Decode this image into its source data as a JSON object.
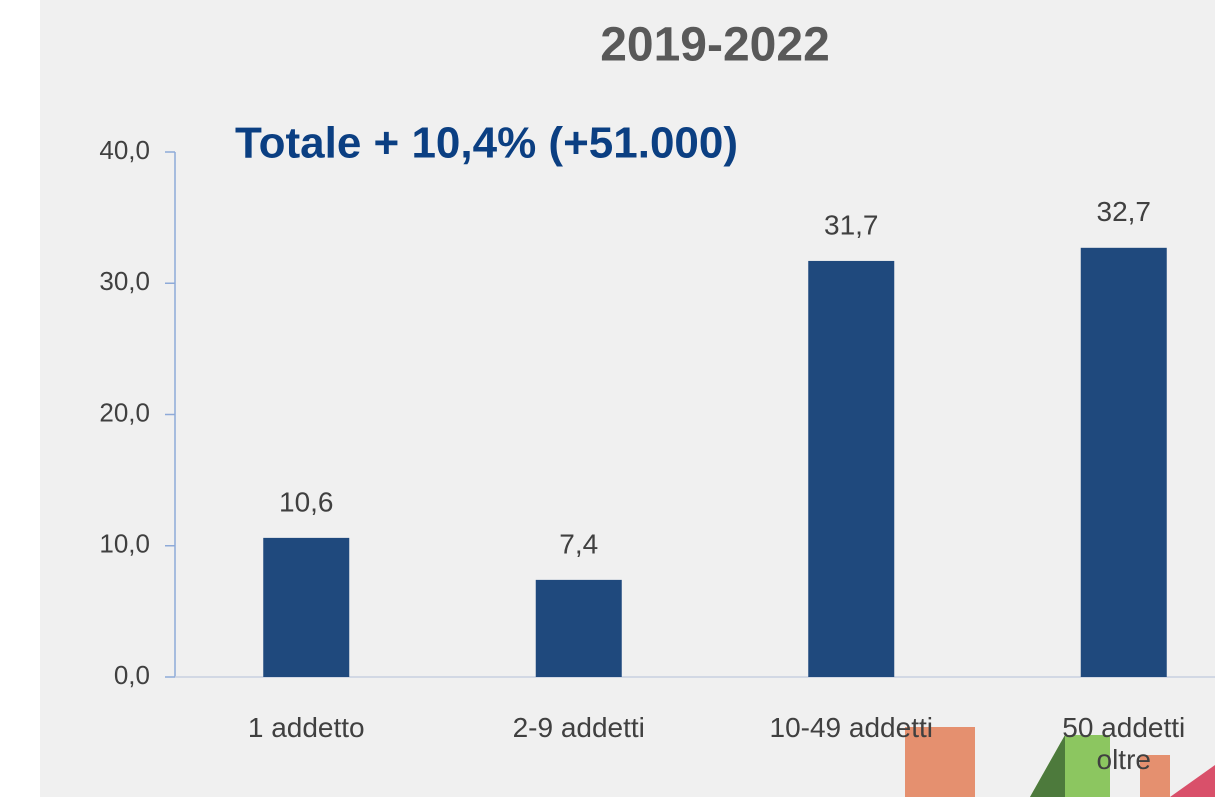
{
  "chart_data": {
    "type": "bar",
    "title": "2019-2022",
    "annotation": "Totale + 10,4% (+51.000)",
    "categories": [
      "1 addetto",
      "2-9 addetti",
      "10-49 addetti",
      "50 addetti oltre"
    ],
    "values": [
      10.6,
      7.4,
      31.7,
      32.7
    ],
    "value_labels": [
      "10,6",
      "7,4",
      "31,7",
      "32,7"
    ],
    "color": "#1f497d",
    "ylim": [
      0,
      40
    ],
    "yticks": [
      {
        "value": 0,
        "label": "0,0"
      },
      {
        "value": 10,
        "label": "10,0"
      },
      {
        "value": 20,
        "label": "20,0"
      },
      {
        "value": 30,
        "label": "30,0"
      },
      {
        "value": 40,
        "label": "40,0"
      }
    ],
    "grid": false
  }
}
